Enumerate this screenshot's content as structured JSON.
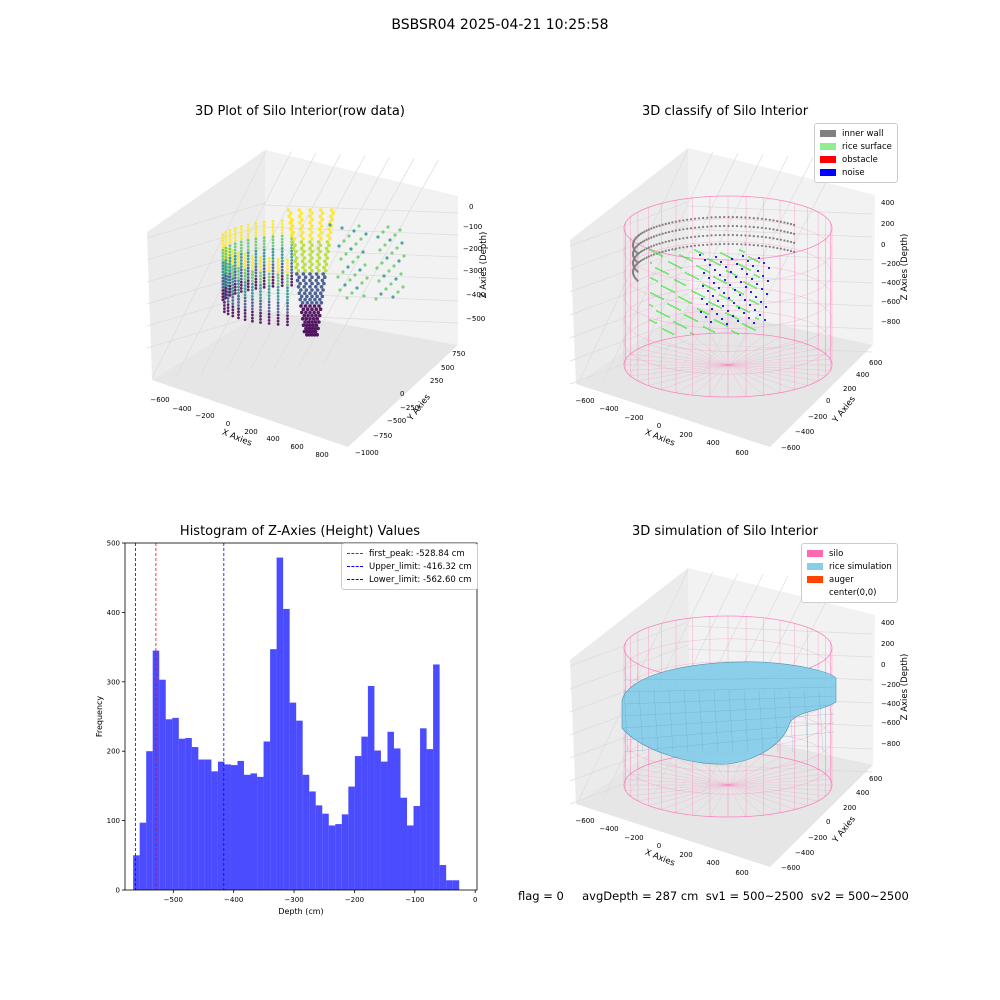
{
  "suptitle": "BSBSR04 2025-04-21 10:25:58",
  "panels": {
    "raw": {
      "title": "3D Plot of Silo Interior(row data)",
      "xlabel": "X Axies",
      "ylabel": "Y Axies",
      "zlabel": "Z Axies (Depth)",
      "xticks": [
        "−600",
        "−400",
        "−200",
        "0",
        "200",
        "400",
        "600",
        "800"
      ],
      "yticks": [
        "750",
        "500",
        "250",
        "0",
        "−250",
        "−500",
        "−750",
        "−1000"
      ],
      "zticks": [
        "0",
        "−100",
        "−200",
        "−300",
        "−400",
        "−500"
      ]
    },
    "classify": {
      "title": "3D classify of Silo Interior",
      "xlabel": "X Axies",
      "ylabel": "Y Axies",
      "zlabel": "Z Axies (Depth)",
      "xticks": [
        "−600",
        "−400",
        "−200",
        "0",
        "200",
        "400",
        "600"
      ],
      "yticks": [
        "600",
        "400",
        "200",
        "0",
        "−200",
        "−400",
        "−600"
      ],
      "zticks": [
        "400",
        "200",
        "0",
        "−200",
        "−400",
        "−600",
        "−800"
      ],
      "legend": [
        {
          "label": "inner wall",
          "color": "#808080"
        },
        {
          "label": "rice surface",
          "color": "#90ee90"
        },
        {
          "label": "obstacle",
          "color": "#ff0000"
        },
        {
          "label": "noise",
          "color": "#0000ff"
        }
      ]
    },
    "simulation": {
      "title": "3D simulation of Silo Interior",
      "xlabel": "X Axies",
      "ylabel": "Y Axies",
      "zlabel": "Z Axies (Depth)",
      "xticks": [
        "−600",
        "−400",
        "−200",
        "0",
        "200",
        "400",
        "600"
      ],
      "yticks": [
        "600",
        "400",
        "200",
        "0",
        "−200",
        "−400",
        "−600"
      ],
      "zticks": [
        "400",
        "200",
        "0",
        "−200",
        "−400",
        "−600",
        "−800"
      ],
      "legend": [
        {
          "label": "silo",
          "color": "#ff69b4"
        },
        {
          "label": "rice simulation",
          "color": "#87ceeb"
        },
        {
          "label": "auger",
          "color": "#ff4500"
        },
        {
          "label": "center(0,0)",
          "color": ""
        }
      ]
    }
  },
  "footer": "flag = 0     avgDepth = 287 cm  sv1 = 500~2500  sv2 = 500~2500",
  "chart_data": {
    "type": "bar",
    "title": "Histogram of Z-Axies (Height) Values",
    "xlabel": "Depth (cm)",
    "ylabel": "Frequency",
    "xlim": [
      -580,
      3
    ],
    "ylim": [
      0,
      500
    ],
    "xticks": [
      -500,
      -400,
      -300,
      -200,
      -100,
      0
    ],
    "xtick_labels": [
      "−500",
      "−400",
      "−300",
      "−200",
      "−100",
      "0"
    ],
    "yticks": [
      0,
      100,
      200,
      300,
      400,
      500
    ],
    "bar_color": "#0000ff",
    "bin_start": -566.5,
    "bin_width": 10.8,
    "values": [
      50,
      97,
      200,
      345,
      303,
      246,
      248,
      218,
      219,
      206,
      188,
      188,
      171,
      185,
      181,
      180,
      186,
      166,
      168,
      163,
      214,
      347,
      479,
      405,
      270,
      244,
      166,
      142,
      122,
      110,
      93,
      95,
      109,
      149,
      193,
      221,
      294,
      201,
      185,
      228,
      204,
      133,
      93,
      121,
      233,
      203,
      325,
      36,
      14,
      14
    ],
    "vlines": [
      {
        "x": -528.84,
        "color": "#ff0000",
        "label": "first_peak: -528.84 cm"
      },
      {
        "x": -416.32,
        "color": "#0000ff",
        "label": "Upper_limit: -416.32 cm"
      },
      {
        "x": -562.6,
        "color": "#0000ff",
        "label": "Lower_limit: -562.60 cm"
      }
    ],
    "legend_position": "upper right"
  }
}
